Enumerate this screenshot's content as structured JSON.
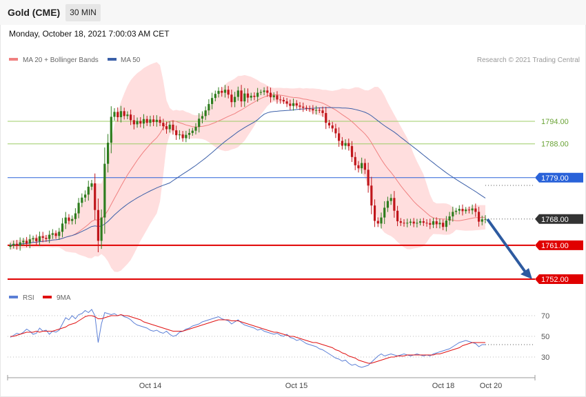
{
  "header": {
    "title": "Gold (CME)",
    "timeframe": "30 MIN"
  },
  "subtitle": "Monday, October 18, 2021 7:00:03 AM CET",
  "copyright": "Research © 2021 Trading Central",
  "colors": {
    "up_candle": "#2e7d1e",
    "down_candle": "#c0161b",
    "bollinger_fill": "#ffdede",
    "ma20": "#f08080",
    "ma50": "#3b5fa8",
    "rsi": "#5b7fd6",
    "rsi_ma": "#e01010",
    "resistance": "#9ccc65",
    "pivot": "#2962d9",
    "support": "#e00000",
    "current": "#333333",
    "arrow": "#2d5aa0"
  },
  "chart_data": [
    {
      "type": "candlestick",
      "title": "",
      "legend": [
        {
          "name": "MA 20 + Bollinger Bands",
          "color": "#f08080"
        },
        {
          "name": "MA 50",
          "color": "#3b5fa8"
        }
      ],
      "legend_position": "top-left",
      "x_ticks": [
        "Oct 14",
        "Oct 15",
        "Oct 18",
        "Oct 20"
      ],
      "levels": [
        {
          "value": 1794.0,
          "label": "1794.00",
          "kind": "resistance"
        },
        {
          "value": 1788.0,
          "label": "1788.00",
          "kind": "resistance"
        },
        {
          "value": 1779.0,
          "label": "1779.00",
          "kind": "pivot"
        },
        {
          "value": 1768.0,
          "label": "1768.00",
          "kind": "current"
        },
        {
          "value": 1761.0,
          "label": "1761.00",
          "kind": "support"
        },
        {
          "value": 1752.0,
          "label": "1752.00",
          "kind": "support"
        }
      ],
      "close": [
        1761.0,
        1761.4,
        1760.9,
        1761.8,
        1762.2,
        1761.5,
        1762.6,
        1762.9,
        1762.1,
        1763.4,
        1763.0,
        1762.7,
        1763.8,
        1764.2,
        1763.5,
        1764.6,
        1766.8,
        1768.4,
        1767.5,
        1768.0,
        1769.5,
        1772.3,
        1773.7,
        1774.5,
        1776.6,
        1777.5,
        1770.4,
        1762.2,
        1768.4,
        1782.7,
        1788.3,
        1795.2,
        1796.5,
        1795.1,
        1796.7,
        1795.4,
        1795.8,
        1794.3,
        1793.2,
        1794.1,
        1793.4,
        1794.6,
        1793.6,
        1794.5,
        1793.8,
        1794.4,
        1793.6,
        1792.7,
        1791.9,
        1793.1,
        1791.6,
        1790.3,
        1790.5,
        1789.5,
        1790.4,
        1790.9,
        1791.5,
        1792.5,
        1794.7,
        1795.4,
        1796.9,
        1798.6,
        1800.2,
        1801.3,
        1802.1,
        1801.6,
        1802.4,
        1801.1,
        1799.1,
        1800.5,
        1802.2,
        1799.3,
        1801.4,
        1800.3,
        1800.8,
        1800.5,
        1801.6,
        1801.8,
        1802.2,
        1801.6,
        1800.4,
        1800.9,
        1799.8,
        1799.7,
        1799.3,
        1798.7,
        1798.1,
        1798.8,
        1798.2,
        1797.9,
        1797.6,
        1797.4,
        1797.3,
        1796.9,
        1797.0,
        1796.9,
        1796.2,
        1793.6,
        1792.9,
        1792.1,
        1790.8,
        1788.8,
        1787.5,
        1788.2,
        1787.4,
        1784.5,
        1782.3,
        1781.5,
        1782.9,
        1781.1,
        1776.9,
        1771.6,
        1767.5,
        1766.8,
        1768.4,
        1771.0,
        1772.8,
        1773.6,
        1770.2,
        1767.4,
        1767.0,
        1766.9,
        1767.0,
        1767.3,
        1766.8,
        1767.0,
        1767.4,
        1767.0,
        1766.9,
        1766.5,
        1767.4,
        1766.6,
        1767.0,
        1765.9,
        1767.6,
        1768.7,
        1769.9,
        1770.2,
        1770.7,
        1770.1,
        1770.5,
        1770.3,
        1770.8,
        1769.9,
        1767.3,
        1767.9,
        1768.0
      ],
      "ma20_end": 1768.5,
      "ma50_end": 1775.8
    },
    {
      "type": "line",
      "title": "",
      "legend": [
        {
          "name": "RSI",
          "color": "#5b7fd6"
        },
        {
          "name": "9MA",
          "color": "#e01010"
        }
      ],
      "y_ticks": [
        "70",
        "50",
        "30"
      ],
      "ylim": [
        20,
        80
      ],
      "rsi": [
        49,
        51,
        53,
        52,
        54,
        57,
        55,
        52,
        53,
        58,
        55,
        56,
        52,
        55,
        54,
        56,
        62,
        68,
        66,
        70,
        67,
        71,
        72,
        75,
        73,
        76,
        70,
        44,
        62,
        73,
        72,
        71,
        72,
        70,
        71,
        69,
        68,
        66,
        63,
        61,
        60,
        59,
        58,
        56,
        55,
        56,
        54,
        53,
        55,
        52,
        50,
        51,
        54,
        55,
        57,
        58,
        60,
        61,
        62,
        64,
        65,
        66,
        67,
        68,
        69,
        67,
        66,
        65,
        62,
        64,
        66,
        63,
        61,
        60,
        59,
        58,
        56,
        57,
        55,
        54,
        53,
        52,
        53,
        51,
        50,
        52,
        49,
        48,
        46,
        47,
        45,
        43,
        42,
        41,
        40,
        38,
        37,
        35,
        33,
        31,
        29,
        28,
        26,
        27,
        24,
        22,
        23,
        21,
        20,
        21,
        22,
        25,
        28,
        31,
        33,
        31,
        32,
        33,
        32,
        31,
        32,
        33,
        32,
        31,
        32,
        33,
        32,
        31,
        32,
        31,
        33,
        34,
        35,
        36,
        37,
        38,
        40,
        42,
        44,
        45,
        46,
        45,
        44,
        43,
        40,
        42,
        42
      ],
      "rsi_ma": [
        50,
        50,
        51,
        52,
        53,
        54,
        54,
        54,
        55,
        54,
        55,
        55,
        55,
        55,
        56,
        57,
        58,
        59,
        61,
        62,
        63,
        65,
        67,
        69,
        70,
        70,
        69,
        67,
        67,
        68,
        69,
        70,
        70,
        70,
        71,
        70,
        70,
        69,
        68,
        67,
        66,
        64,
        63,
        62,
        61,
        60,
        59,
        58,
        57,
        56,
        55,
        55,
        55,
        55,
        56,
        57,
        58,
        59,
        60,
        61,
        62,
        63,
        64,
        65,
        66,
        66,
        66,
        66,
        65,
        65,
        65,
        64,
        63,
        62,
        61,
        60,
        59,
        58,
        57,
        56,
        55,
        54,
        54,
        53,
        52,
        51,
        50,
        50,
        49,
        48,
        47,
        46,
        45,
        44,
        44,
        43,
        42,
        41,
        40,
        39,
        37,
        36,
        34,
        33,
        31,
        30,
        29,
        27,
        26,
        25,
        24,
        24,
        25,
        26,
        27,
        28,
        29,
        30,
        30,
        31,
        31,
        31,
        32,
        32,
        32,
        32,
        32,
        32,
        32,
        32,
        32,
        33,
        33,
        34,
        35,
        36,
        37,
        38,
        39,
        41,
        42,
        43,
        44,
        44,
        44,
        44,
        44
      ]
    }
  ]
}
